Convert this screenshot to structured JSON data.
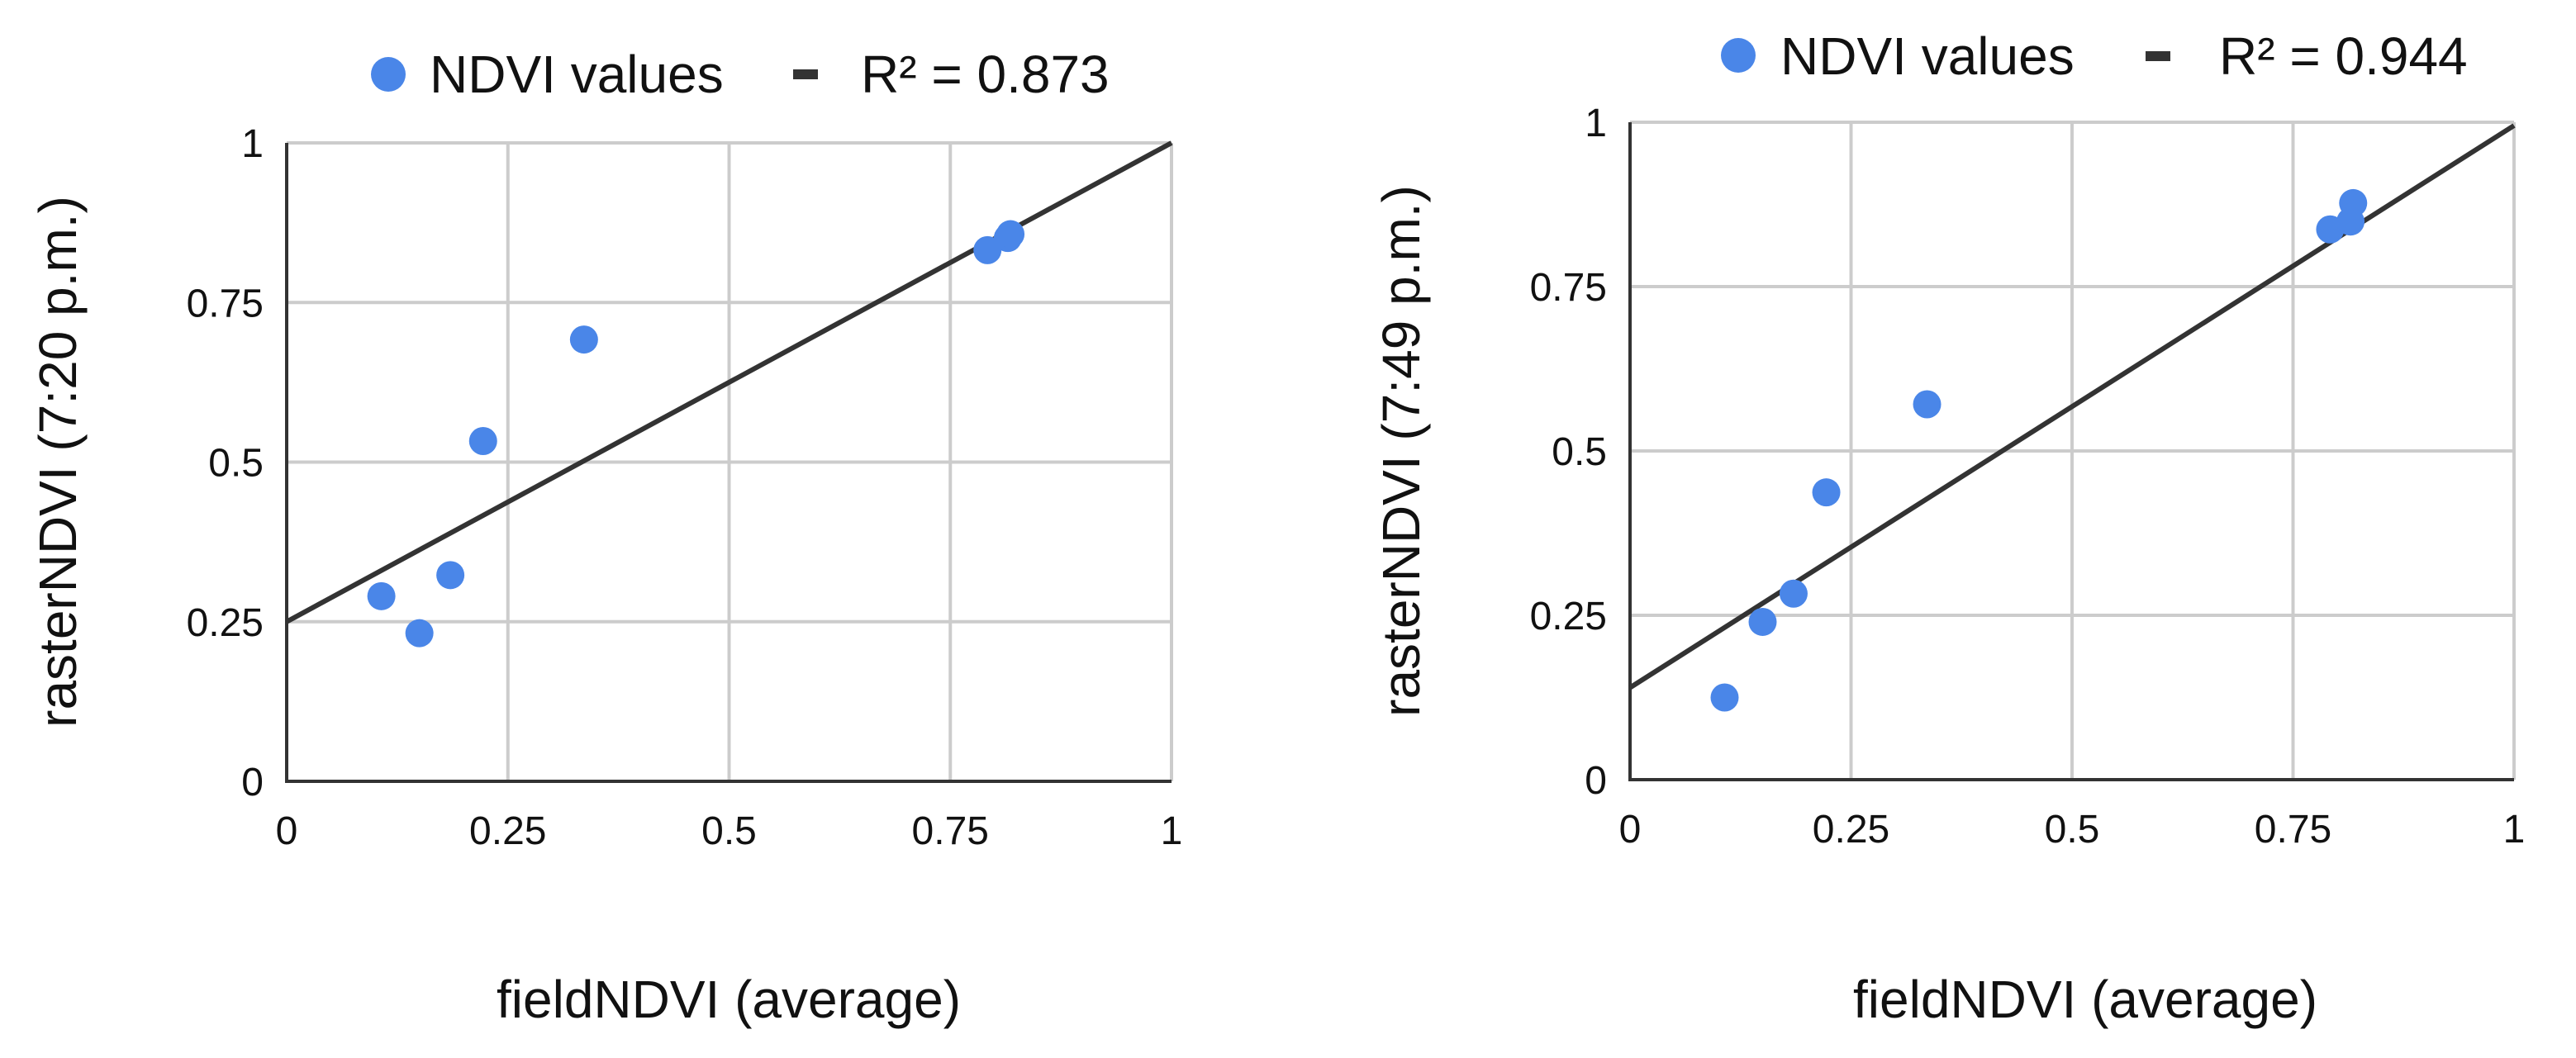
{
  "colors": {
    "point": "#4a86e8",
    "trendline": "#333333",
    "grid": "#cccccc",
    "axis": "#333333",
    "text": "#111111"
  },
  "chart_data": [
    {
      "type": "scatter",
      "legend": {
        "position": "top",
        "series_label": "NDVI values",
        "trendline_label": "R² = 0.873"
      },
      "xlabel": "fieldNDVI (average)",
      "ylabel": "rasterNDVI (7:20  p.m.)",
      "xlim": [
        0,
        1
      ],
      "ylim": [
        0,
        1
      ],
      "xticks": [
        "0",
        "0.25",
        "0.5",
        "0.75",
        "1"
      ],
      "yticks": [
        "0",
        "0.25",
        "0.5",
        "0.75",
        "1"
      ],
      "grid": true,
      "series": [
        {
          "name": "NDVI values",
          "points": [
            {
              "x": 0.107,
              "y": 0.29
            },
            {
              "x": 0.15,
              "y": 0.232
            },
            {
              "x": 0.185,
              "y": 0.323
            },
            {
              "x": 0.222,
              "y": 0.533
            },
            {
              "x": 0.336,
              "y": 0.692
            },
            {
              "x": 0.792,
              "y": 0.832
            },
            {
              "x": 0.815,
              "y": 0.851
            },
            {
              "x": 0.818,
              "y": 0.857
            }
          ]
        }
      ],
      "trendline": {
        "intercept": 0.25,
        "slope": 0.75,
        "r_squared": 0.873
      }
    },
    {
      "type": "scatter",
      "legend": {
        "position": "top",
        "series_label": "NDVI values",
        "trendline_label": "R² = 0.944"
      },
      "xlabel": "fieldNDVI (average)",
      "ylabel": "rasterNDVI (7:49  p.m.)",
      "xlim": [
        0,
        1
      ],
      "ylim": [
        0,
        1
      ],
      "xticks": [
        "0",
        "0.25",
        "0.5",
        "0.75",
        "1"
      ],
      "yticks": [
        "0",
        "0.25",
        "0.5",
        "0.75",
        "1"
      ],
      "grid": true,
      "series": [
        {
          "name": "NDVI values",
          "points": [
            {
              "x": 0.107,
              "y": 0.125
            },
            {
              "x": 0.15,
              "y": 0.24
            },
            {
              "x": 0.185,
              "y": 0.283
            },
            {
              "x": 0.222,
              "y": 0.437
            },
            {
              "x": 0.336,
              "y": 0.571
            },
            {
              "x": 0.792,
              "y": 0.837
            },
            {
              "x": 0.815,
              "y": 0.849
            },
            {
              "x": 0.818,
              "y": 0.877
            }
          ]
        }
      ],
      "trendline": {
        "intercept": 0.14,
        "slope": 0.855,
        "r_squared": 0.944
      }
    }
  ]
}
